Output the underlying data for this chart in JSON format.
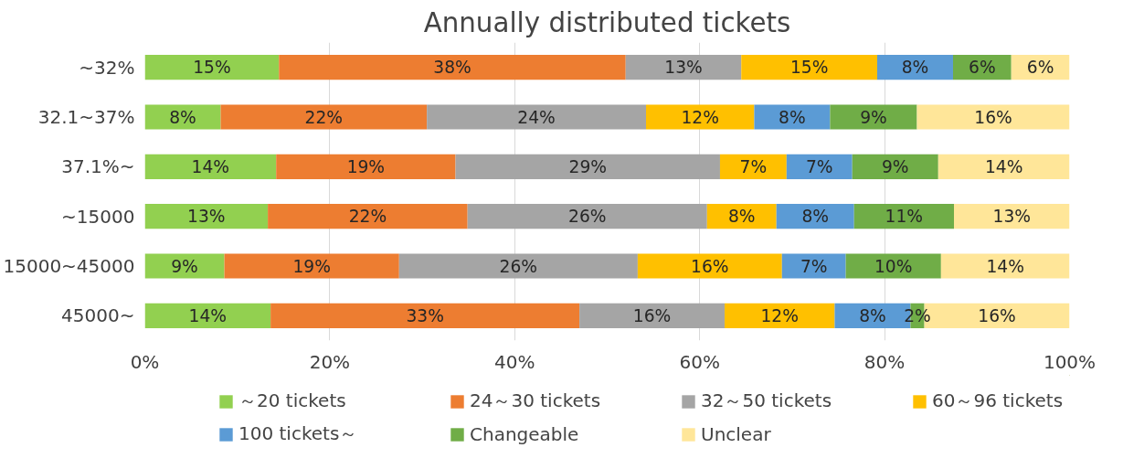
{
  "chart_data": {
    "type": "bar",
    "orientation": "horizontal",
    "stacked": true,
    "title": "Annually distributed tickets",
    "categories": [
      "~32%",
      "32.1~37%",
      "37.1%~",
      "~15000",
      "15000~45000",
      "45000~"
    ],
    "series": [
      {
        "name": "～20 tickets",
        "color": "#92d050",
        "values": [
          14.5,
          8.2,
          14.2,
          13.3,
          8.6,
          13.6
        ],
        "value_labels": [
          "15%",
          "8%",
          "14%",
          "13%",
          "9%",
          "14%"
        ]
      },
      {
        "name": "24～30 tickets",
        "color": "#ed7d31",
        "values": [
          37.5,
          22.3,
          19.4,
          21.6,
          18.9,
          33.4
        ],
        "value_labels": [
          "38%",
          "22%",
          "19%",
          "22%",
          "19%",
          "33%"
        ]
      },
      {
        "name": "32～50 tickets",
        "color": "#a5a5a5",
        "values": [
          12.5,
          23.7,
          28.6,
          25.9,
          25.8,
          15.7
        ],
        "value_labels": [
          "13%",
          "24%",
          "29%",
          "26%",
          "26%",
          "16%"
        ]
      },
      {
        "name": "60～96 tickets",
        "color": "#ffc000",
        "values": [
          14.7,
          11.7,
          7.2,
          7.5,
          15.6,
          11.9
        ],
        "value_labels": [
          "15%",
          "12%",
          "7%",
          "8%",
          "16%",
          "12%"
        ]
      },
      {
        "name": "100 tickets～",
        "color": "#5b9bd5",
        "values": [
          8.2,
          8.2,
          7.1,
          8.4,
          6.9,
          8.2
        ],
        "value_labels": [
          "8%",
          "8%",
          "7%",
          "8%",
          "7%",
          "8%"
        ]
      },
      {
        "name": "Changeable",
        "color": "#70ad47",
        "values": [
          6.3,
          9.4,
          9.3,
          10.8,
          10.3,
          1.5
        ],
        "value_labels": [
          "6%",
          "9%",
          "9%",
          "11%",
          "10%",
          "2%"
        ]
      },
      {
        "name": "Unclear",
        "color": "#ffe699",
        "values": [
          6.3,
          16.5,
          14.2,
          12.5,
          13.9,
          15.7
        ],
        "value_labels": [
          "6%",
          "16%",
          "14%",
          "13%",
          "14%",
          "16%"
        ]
      }
    ],
    "xlim": [
      0,
      100
    ],
    "xticks": [
      {
        "value": 0,
        "label": "0%"
      },
      {
        "value": 20,
        "label": "20%"
      },
      {
        "value": 40,
        "label": "40%"
      },
      {
        "value": 60,
        "label": "60%"
      },
      {
        "value": 80,
        "label": "80%"
      },
      {
        "value": 100,
        "label": "100%"
      }
    ],
    "grid": "x",
    "legend": "bottom"
  }
}
